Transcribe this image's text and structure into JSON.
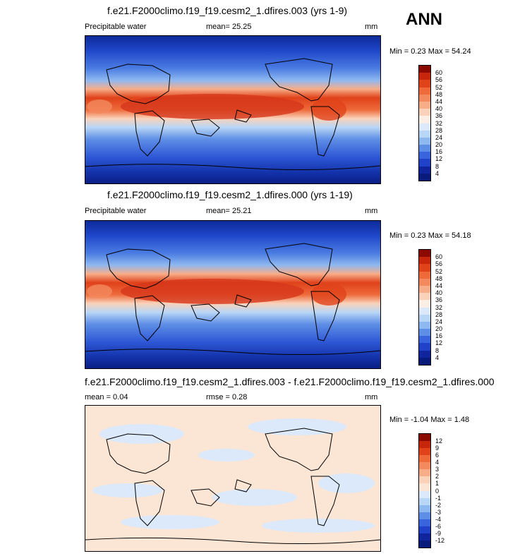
{
  "season": "ANN",
  "panels": [
    {
      "title": "f.e21.F2000climo.f19_f19.cesm2_1.dfires.003 (yrs 1-9)",
      "variable": "Precipitable water",
      "stat": "mean=  25.25",
      "units": "mm",
      "minmax": "Min =   0.23 Max =  54.24"
    },
    {
      "title": "f.e21.F2000climo.f19_f19.cesm2_1.dfires.000 (yrs 1-19)",
      "variable": "Precipitable water",
      "stat": "mean=  25.21",
      "units": "mm",
      "minmax": "Min =   0.23 Max =  54.18"
    },
    {
      "title": "f.e21.F2000climo.f19_f19.cesm2_1.dfires.003 - f.e21.F2000climo.f19_f19.cesm2_1.dfires.000",
      "mean": "mean =   0.04",
      "rmse": "rmse =   0.28",
      "units": "mm",
      "minmax": "Min =  -1.04 Max =   1.48"
    }
  ],
  "colorbar_main": {
    "labels": [
      "60",
      "56",
      "52",
      "48",
      "44",
      "40",
      "36",
      "32",
      "28",
      "24",
      "20",
      "16",
      "12",
      "8",
      "4"
    ],
    "colors": [
      "#8b0a00",
      "#c8260a",
      "#e0421a",
      "#ee6a3a",
      "#f38a5e",
      "#f7ad88",
      "#fad2ba",
      "#fbeee4",
      "#dbe9fa",
      "#b8d6f6",
      "#8eb8f0",
      "#5f8ee6",
      "#3a64dd",
      "#2042c8",
      "#10249e",
      "#081a7a"
    ]
  },
  "colorbar_diff": {
    "labels": [
      "12",
      "9",
      "6",
      "4",
      "3",
      "2",
      "1",
      "0",
      "-1",
      "-2",
      "-3",
      "-4",
      "-6",
      "-9",
      "-12"
    ],
    "colors": [
      "#8b0a00",
      "#c8260a",
      "#e0421a",
      "#ee6a3a",
      "#f38a5e",
      "#f7ad88",
      "#fad2ba",
      "#fbe6d6",
      "#dbe9fa",
      "#b8d6f6",
      "#8eb8f0",
      "#5f8ee6",
      "#3a64dd",
      "#2042c8",
      "#10249e",
      "#081a7a"
    ]
  }
}
